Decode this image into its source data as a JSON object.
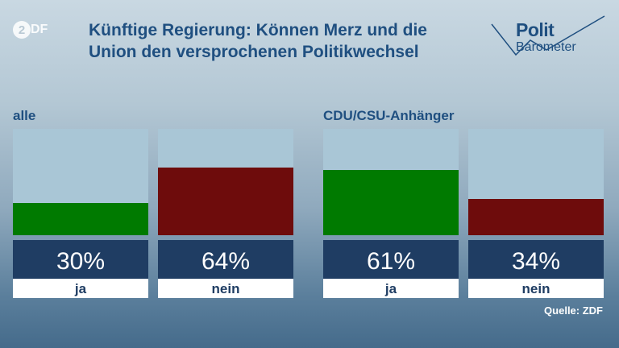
{
  "brand": {
    "logo_text": "ZDF",
    "logo_mark": "2"
  },
  "title": "Künftige Regierung: Können Merz und die Union den versprochenen Politikwechsel",
  "badge": {
    "line1": "Polit",
    "line2": "Barometer"
  },
  "source": "Quelle: ZDF",
  "colors": {
    "ja": "#007a00",
    "nein": "#6e0c0c",
    "track": "#a9c6d6",
    "value_box": "#1f3d63",
    "label_box": "#ffffff",
    "text_dark": "#1f3d63"
  },
  "chart_data": [
    {
      "type": "bar",
      "group": "alle",
      "categories": [
        "ja",
        "nein"
      ],
      "values": [
        30,
        64
      ],
      "value_labels": [
        "30%",
        "64%"
      ],
      "ylim": [
        0,
        100
      ]
    },
    {
      "type": "bar",
      "group": "CDU/CSU-Anhänger",
      "categories": [
        "ja",
        "nein"
      ],
      "values": [
        61,
        34
      ],
      "value_labels": [
        "61%",
        "34%"
      ],
      "ylim": [
        0,
        100
      ]
    }
  ]
}
